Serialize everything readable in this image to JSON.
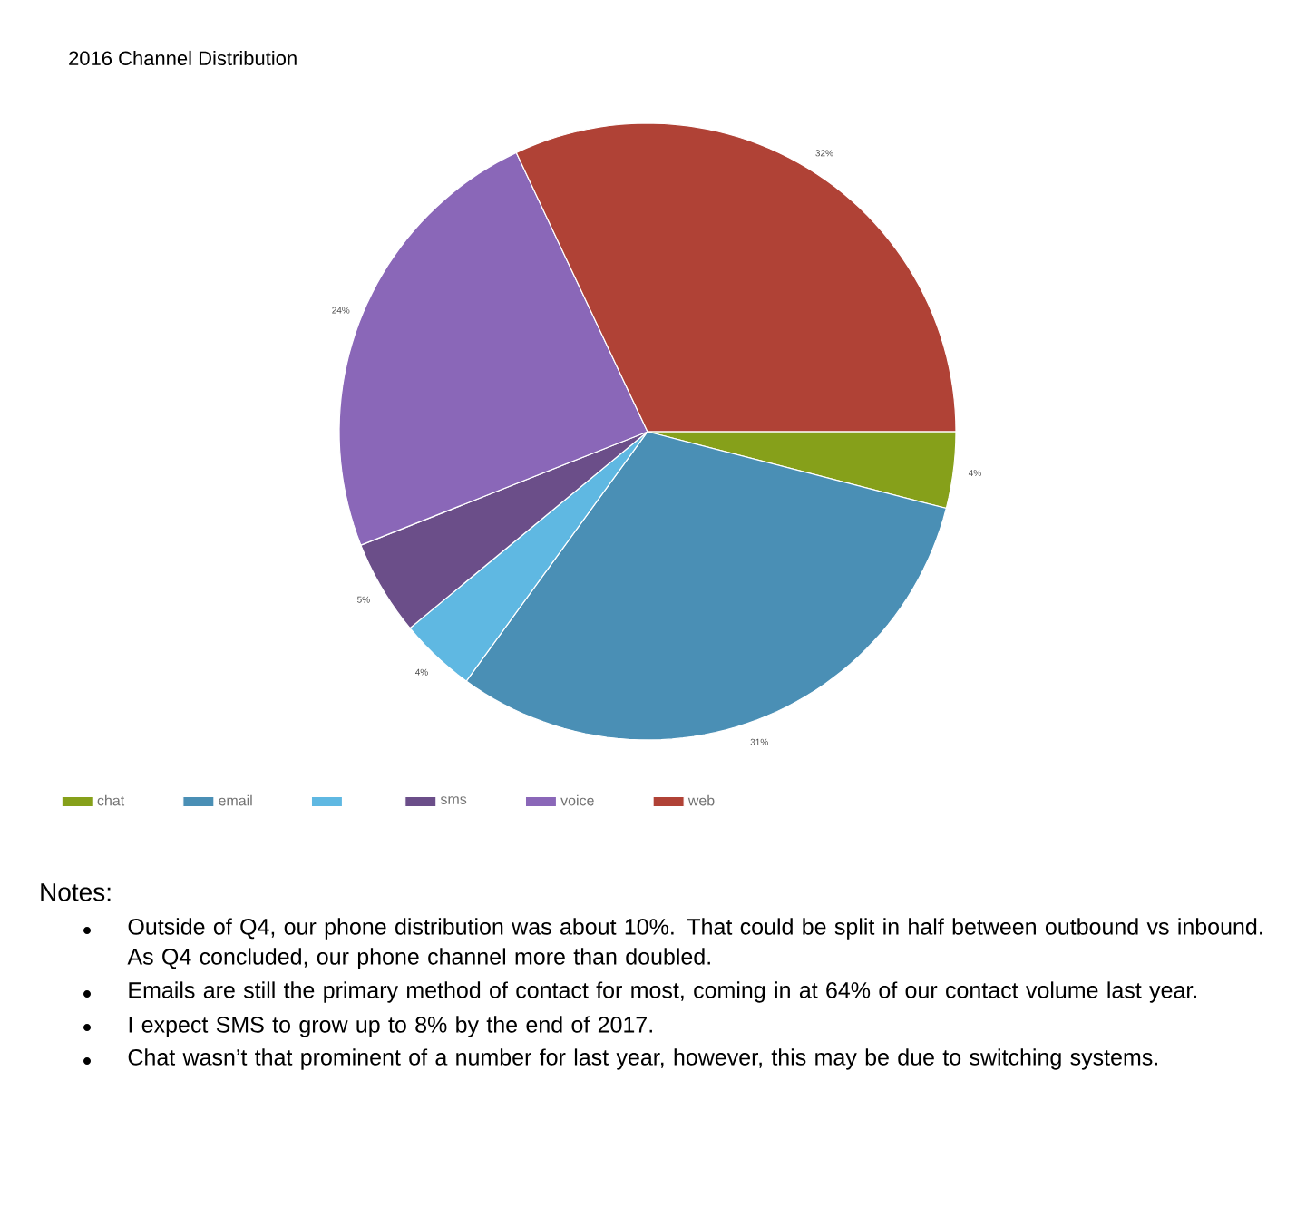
{
  "chart_data": {
    "type": "pie",
    "title": "2016 Channel Distribution",
    "categories": [
      "chat",
      "email",
      null,
      "sms",
      "voice",
      "web"
    ],
    "values": [
      4,
      31,
      4,
      5,
      24,
      32
    ],
    "value_labels": [
      "4%",
      "31%",
      "4%",
      "5%",
      "24%",
      "32%"
    ],
    "colors": [
      "#86a01a",
      "#4a8fb5",
      "#5fb8e2",
      "#6b4e89",
      "#8a67b8",
      "#b04236"
    ],
    "legend": "bottom",
    "annotations": [
      "Notes:",
      "Outside of Q4, our phone distribution was about 10%. That could be split in half between outbound vs inbound. As Q4 concluded, our phone channel more than doubled.",
      "Emails are still the primary method of contact for most, coming in at 64% of our contact volume last year.",
      "I expect SMS to grow up to 8% by the end of 2017.",
      "Chat wasn’t that prominent of a number for last year, however, this may be due to switching systems."
    ]
  }
}
